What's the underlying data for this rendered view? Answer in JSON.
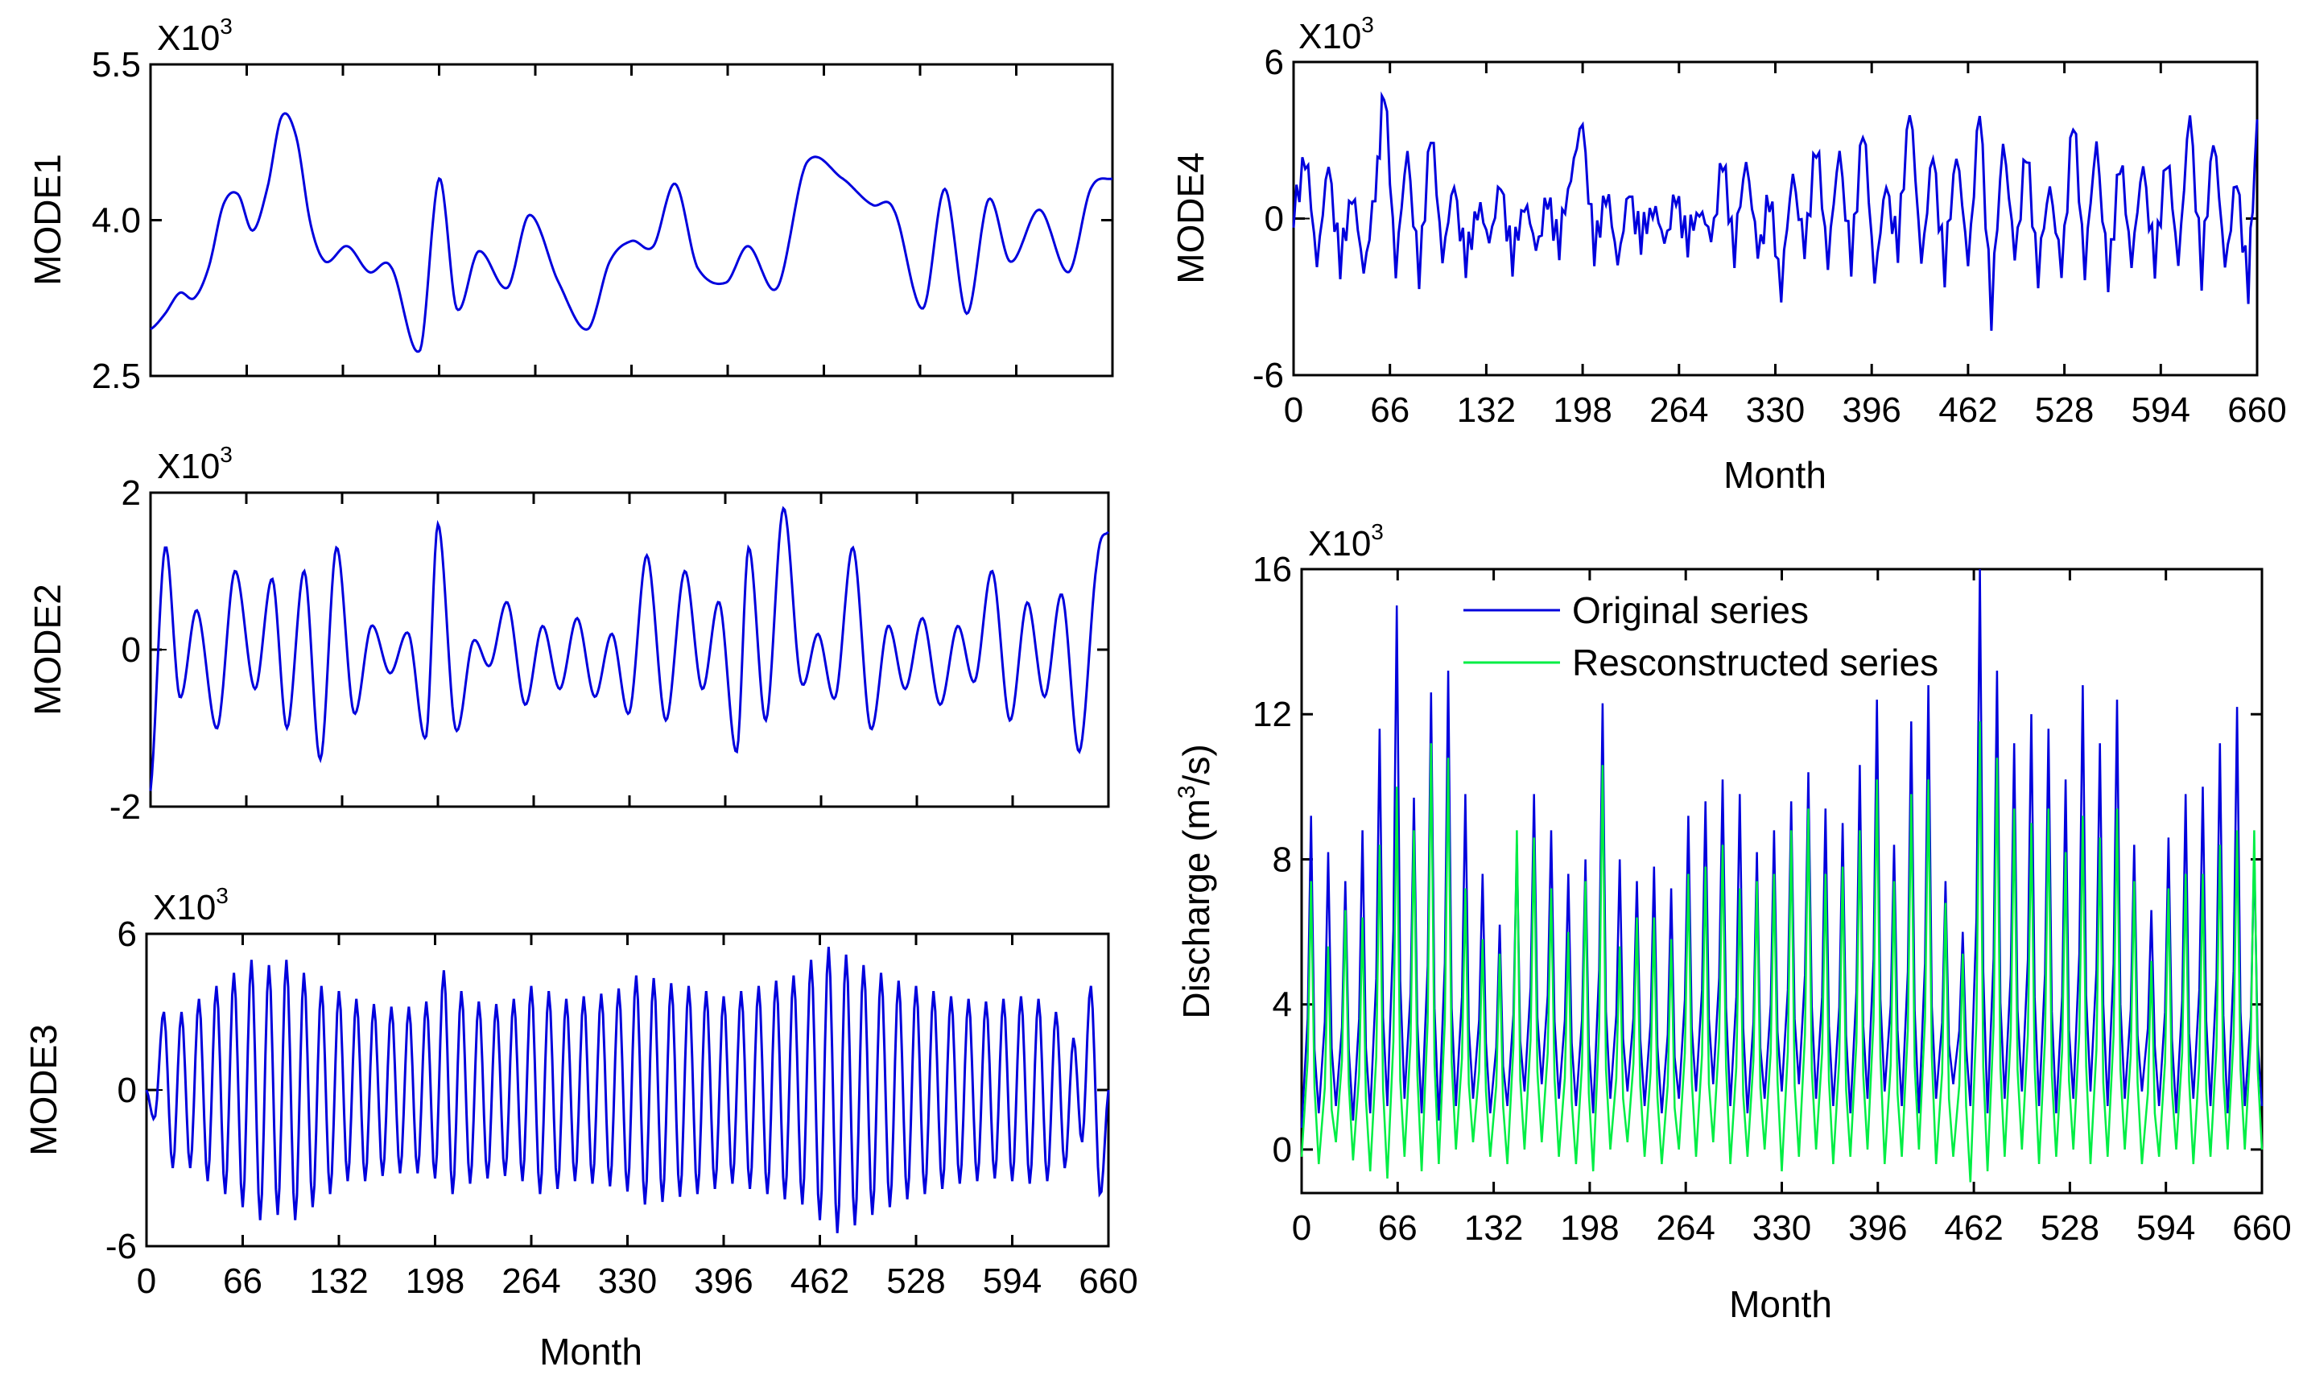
{
  "colors": {
    "original": "#0000dd",
    "reconstructed": "#00ee44",
    "mode": "#0000dd"
  },
  "chart_data": [
    {
      "id": "mode1",
      "type": "line",
      "ylabel": "MODE1",
      "scale_label": "X10",
      "scale_exp": "3",
      "x_ticks": [],
      "y_ticks": [
        "2.5",
        "4.0",
        "5.5"
      ],
      "ylim": [
        2.5,
        5.5
      ],
      "xlim": [
        0,
        660
      ],
      "series": [
        {
          "name": "MODE1",
          "x": [
            0,
            10,
            20,
            30,
            40,
            50,
            60,
            70,
            80,
            90,
            100,
            110,
            120,
            135,
            150,
            165,
            185,
            198,
            210,
            225,
            245,
            260,
            280,
            300,
            315,
            330,
            345,
            360,
            375,
            395,
            410,
            430,
            450,
            475,
            495,
            510,
            530,
            545,
            560,
            575,
            590,
            610,
            630,
            645,
            660
          ],
          "values": [
            2.95,
            3.1,
            3.3,
            3.25,
            3.55,
            4.15,
            4.25,
            3.9,
            4.3,
            5.0,
            4.8,
            3.95,
            3.6,
            3.75,
            3.5,
            3.55,
            2.75,
            4.4,
            3.15,
            3.7,
            3.35,
            4.05,
            3.4,
            2.95,
            3.6,
            3.8,
            3.75,
            4.35,
            3.55,
            3.4,
            3.75,
            3.35,
            4.55,
            4.4,
            4.15,
            4.1,
            3.15,
            4.3,
            3.1,
            4.2,
            3.6,
            4.1,
            3.5,
            4.3,
            4.4
          ]
        }
      ]
    },
    {
      "id": "mode2",
      "type": "line",
      "ylabel": "MODE2",
      "scale_label": "X10",
      "scale_exp": "3",
      "x_ticks": [],
      "y_ticks": [
        "-2",
        "0",
        "2"
      ],
      "ylim": [
        -2,
        2
      ],
      "xlim": [
        0,
        660
      ],
      "series": [
        {
          "name": "MODE2",
          "x": [
            0,
            10,
            20,
            32,
            46,
            58,
            72,
            84,
            94,
            106,
            117,
            128,
            140,
            152,
            165,
            178,
            190,
            198,
            210,
            222,
            234,
            246,
            258,
            270,
            282,
            294,
            306,
            318,
            330,
            342,
            355,
            368,
            380,
            392,
            404,
            412,
            424,
            436,
            448,
            460,
            472,
            484,
            496,
            508,
            520,
            532,
            544,
            556,
            568,
            580,
            592,
            604,
            616,
            628,
            640,
            652,
            660
          ],
          "values": [
            -1.8,
            1.3,
            -0.6,
            0.5,
            -1.0,
            1.0,
            -0.5,
            0.9,
            -1.0,
            1.0,
            -1.4,
            1.3,
            -0.8,
            0.3,
            -0.3,
            0.2,
            -1.1,
            1.6,
            -1.0,
            0.1,
            -0.2,
            0.6,
            -0.7,
            0.3,
            -0.5,
            0.4,
            -0.6,
            0.2,
            -0.8,
            1.2,
            -0.9,
            1.0,
            -0.5,
            0.6,
            -1.3,
            1.3,
            -0.9,
            1.8,
            -0.4,
            0.2,
            -0.6,
            1.3,
            -1.0,
            0.3,
            -0.5,
            0.4,
            -0.7,
            0.3,
            -0.4,
            1.0,
            -0.9,
            0.6,
            -0.6,
            0.7,
            -1.3,
            1.1,
            1.5
          ]
        }
      ]
    },
    {
      "id": "mode3",
      "type": "line",
      "ylabel": "MODE3",
      "scale_label": "X10",
      "scale_exp": "3",
      "x_label": "Month",
      "x_ticks": [
        "0",
        "66",
        "132",
        "198",
        "264",
        "330",
        "396",
        "462",
        "528",
        "594",
        "660"
      ],
      "y_ticks": [
        "-6",
        "0",
        "6"
      ],
      "ylim": [
        -6,
        6
      ],
      "xlim": [
        0,
        660
      ],
      "series": [
        {
          "name": "MODE3",
          "x": [
            0,
            6,
            12,
            18,
            24,
            30,
            36,
            42,
            48,
            54,
            60,
            66,
            72,
            78,
            84,
            90,
            96,
            102,
            108,
            114,
            120,
            126,
            132,
            138,
            144,
            150,
            156,
            162,
            168,
            174,
            180,
            186,
            192,
            198,
            204,
            210,
            216,
            222,
            228,
            234,
            240,
            246,
            252,
            258,
            264,
            270,
            276,
            282,
            288,
            294,
            300,
            306,
            312,
            318,
            324,
            330,
            336,
            342,
            348,
            354,
            360,
            366,
            372,
            378,
            384,
            390,
            396,
            402,
            408,
            414,
            420,
            426,
            432,
            438,
            444,
            450,
            456,
            462,
            468,
            474,
            480,
            486,
            492,
            498,
            504,
            510,
            516,
            522,
            528,
            534,
            540,
            546,
            552,
            558,
            564,
            570,
            576,
            582,
            588,
            594,
            600,
            606,
            612,
            618,
            624,
            630,
            636,
            642,
            648,
            654,
            660
          ],
          "values": [
            0,
            -1,
            3,
            -3,
            3,
            -3,
            3.5,
            -3.5,
            4,
            -4,
            4.5,
            -4.5,
            5,
            -5,
            4.8,
            -4.8,
            5,
            -5,
            4.5,
            -4.5,
            4,
            -4,
            3.8,
            -3.5,
            3.5,
            -3.5,
            3.3,
            -3.3,
            3.2,
            -3.2,
            3.2,
            -3.2,
            3.4,
            -3.4,
            4.6,
            -4,
            3.8,
            -3.6,
            3.4,
            -3.4,
            3.3,
            -3.3,
            3.5,
            -3.5,
            4,
            -4,
            3.8,
            -3.8,
            3.5,
            -3.5,
            3.6,
            -3.6,
            3.7,
            -3.7,
            3.9,
            -3.9,
            4.4,
            -4.4,
            4.3,
            -4.3,
            4.1,
            -4.1,
            4.0,
            -4.0,
            3.8,
            -3.8,
            3.6,
            -3.6,
            3.8,
            -3.8,
            4,
            -4,
            4.2,
            -4.2,
            4.4,
            -4.4,
            5,
            -5,
            5.5,
            -5.5,
            5.2,
            -5.2,
            4.8,
            -4.8,
            4.5,
            -4.5,
            4.2,
            -4.2,
            4,
            -4,
            3.8,
            -3.8,
            3.6,
            -3.6,
            3.5,
            -3.5,
            3.4,
            -3.4,
            3.5,
            -3.5,
            3.6,
            -3.6,
            3.5,
            -3.5,
            3,
            -3,
            2,
            -2,
            4,
            -4,
            0
          ]
        }
      ]
    },
    {
      "id": "mode4",
      "type": "line",
      "ylabel": "MODE4",
      "scale_label": "X10",
      "scale_exp": "3",
      "x_label": "Month",
      "x_ticks": [
        "0",
        "66",
        "132",
        "198",
        "264",
        "330",
        "396",
        "462",
        "528",
        "594",
        "660"
      ],
      "y_ticks": [
        "-6",
        "0",
        "6"
      ],
      "ylim": [
        -6,
        6
      ],
      "xlim": [
        0,
        660
      ],
      "series": [
        {
          "name": "MODE4",
          "x": [
            0,
            8,
            16,
            24,
            32,
            40,
            48,
            56,
            62,
            70,
            78,
            86,
            94,
            102,
            110,
            118,
            126,
            134,
            142,
            150,
            158,
            166,
            174,
            182,
            190,
            198,
            206,
            214,
            222,
            230,
            238,
            246,
            254,
            262,
            270,
            278,
            286,
            294,
            302,
            310,
            318,
            326,
            334,
            342,
            350,
            358,
            366,
            374,
            382,
            390,
            398,
            406,
            414,
            422,
            430,
            438,
            446,
            454,
            462,
            470,
            478,
            486,
            494,
            502,
            510,
            518,
            526,
            534,
            542,
            550,
            558,
            566,
            574,
            582,
            590,
            598,
            606,
            614,
            622,
            630,
            638,
            646,
            654,
            660
          ],
          "values": [
            0,
            2.6,
            -1.6,
            2,
            -1.8,
            1.2,
            -2,
            0.8,
            5.2,
            -1.8,
            2.6,
            -2.4,
            3.6,
            -1.4,
            1.2,
            -1.8,
            0.6,
            -0.8,
            1.2,
            -1.6,
            0.8,
            -1.2,
            0.6,
            -0.9,
            1.8,
            3.6,
            -1.4,
            1.2,
            -1.6,
            0.9,
            -0.8,
            0.6,
            -0.9,
            0.7,
            -0.8,
            0.5,
            -0.9,
            2.2,
            -1.2,
            2.4,
            -1.5,
            0.8,
            -2.6,
            1.8,
            -1.4,
            3.0,
            -1.5,
            2.6,
            -1.9,
            3.8,
            -2.2,
            1.2,
            -1.2,
            4.6,
            -1.6,
            2.4,
            -2.0,
            2.8,
            -1.8,
            4.2,
            -3.6,
            3.2,
            -1.6,
            2.6,
            -2.0,
            1.4,
            -2.2,
            4.0,
            -1.8,
            3.0,
            -2.6,
            2.4,
            -1.5,
            2.0,
            -1.9,
            2.6,
            -1.6,
            4.0,
            -2.2,
            3.4,
            -1.8,
            1.4,
            -2.6,
            3.8
          ]
        }
      ]
    },
    {
      "id": "discharge",
      "type": "line",
      "ylabel": "Discharge (m",
      "ylabel_sup": "3",
      "ylabel_tail": "/s)",
      "scale_label": "X10",
      "scale_exp": "3",
      "x_label": "Month",
      "x_ticks": [
        "0",
        "66",
        "132",
        "198",
        "264",
        "330",
        "396",
        "462",
        "528",
        "594",
        "660"
      ],
      "y_ticks": [
        "0",
        "4",
        "8",
        "12",
        "16"
      ],
      "ylim": [
        -1.2,
        16
      ],
      "xlim": [
        0,
        660
      ],
      "legend": [
        "Original series",
        "Resconstructed series"
      ],
      "original_peaks": [
        9.2,
        8.2,
        7.4,
        8.8,
        11.6,
        15.0,
        9.7,
        12.6,
        13.2,
        9.8,
        7.6,
        6.2,
        8.4,
        9.8,
        8.8,
        7.6,
        8.0,
        12.3,
        8.0,
        7.4,
        7.8,
        7.2,
        9.2,
        9.6,
        10.2,
        9.8,
        8.2,
        8.8,
        9.6,
        10.4,
        9.4,
        9.0,
        10.6,
        12.4,
        8.4,
        11.8,
        12.8,
        7.4,
        6.0,
        16.0,
        13.2,
        11.2,
        12.0,
        11.6,
        10.2,
        12.8,
        11.2,
        12.4,
        8.4,
        6.6,
        8.6,
        9.8,
        10.0,
        11.2,
        12.2,
        8.2
      ],
      "reconstructed_peaks": [
        7.4,
        5.6,
        6.6,
        6.4,
        8.4,
        10.0,
        8.8,
        11.2,
        10.8,
        7.2,
        5.8,
        5.4,
        8.8,
        8.6,
        7.2,
        6.0,
        7.4,
        10.6,
        5.6,
        6.4,
        6.4,
        5.8,
        7.6,
        7.8,
        8.4,
        7.2,
        7.4,
        7.6,
        8.8,
        9.4,
        7.6,
        7.8,
        8.8,
        10.2,
        7.4,
        9.8,
        10.2,
        6.8,
        5.4,
        11.8,
        10.8,
        9.4,
        9.0,
        9.4,
        8.2,
        9.2,
        8.6,
        9.4,
        7.4,
        5.2,
        7.2,
        7.6,
        7.6,
        8.4,
        8.8,
        8.8
      ],
      "original_troughs": [
        0.6,
        1.0,
        1.2,
        0.8,
        1.0,
        1.2,
        1.4,
        1.0,
        0.8,
        1.2,
        1.4,
        1.0,
        1.2,
        1.6,
        1.8,
        1.4,
        1.2,
        1.0,
        1.4,
        1.6,
        1.2,
        1.0,
        1.4,
        1.6,
        1.8,
        1.2,
        1.0,
        1.4,
        1.6,
        1.8,
        1.4,
        1.2,
        1.0,
        1.4,
        1.6,
        1.2,
        1.0,
        1.4,
        1.8,
        1.2,
        1.0,
        1.4,
        1.6,
        1.2,
        1.0,
        1.4,
        1.6,
        1.2,
        1.4,
        1.6,
        1.2,
        1.0,
        1.4,
        1.2,
        1.0,
        1.2
      ],
      "reconstructed_troughs": [
        -0.2,
        -0.4,
        0.2,
        -0.3,
        -0.6,
        -0.8,
        -0.2,
        -0.6,
        -0.4,
        0.0,
        0.2,
        -0.2,
        -0.4,
        0.0,
        0.2,
        -0.2,
        -0.4,
        -0.6,
        0.0,
        0.2,
        -0.2,
        -0.4,
        0.0,
        -0.2,
        0.2,
        -0.4,
        -0.2,
        0.0,
        -0.6,
        -0.2,
        0.0,
        -0.4,
        -0.2,
        0.0,
        -0.4,
        -0.2,
        0.0,
        -0.4,
        -0.2,
        -0.9,
        -0.6,
        -0.2,
        0.0,
        -0.4,
        -0.2,
        0.0,
        -0.4,
        -0.2,
        0.0,
        -0.4,
        -0.2,
        0.0,
        -0.4,
        -0.2,
        0.0,
        0.0
      ]
    }
  ]
}
